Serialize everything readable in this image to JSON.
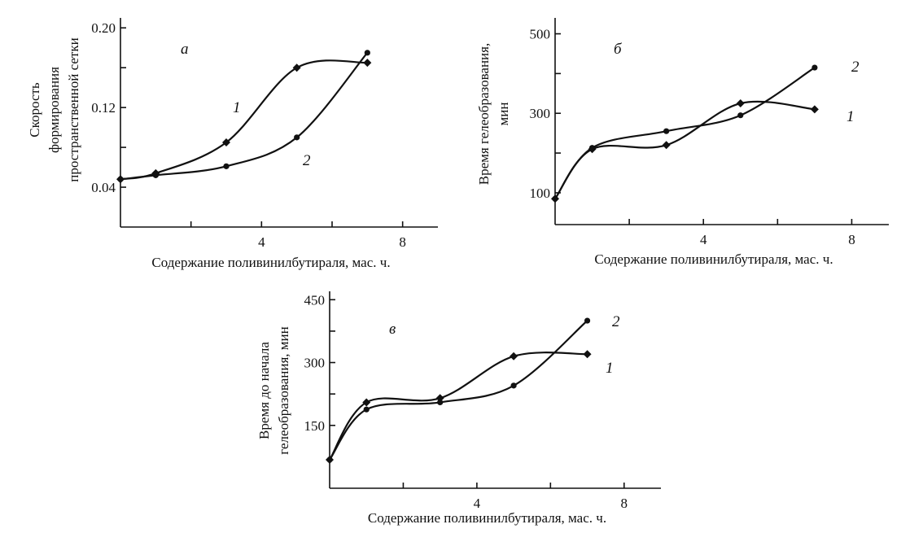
{
  "chart_data": [
    {
      "type": "line",
      "panel_label": "а",
      "xlabel": "Содержание поливинилбутираля, мас. ч.",
      "ylabel_lines": [
        "Скорость",
        "формирования",
        "пространственной сетки"
      ],
      "xlim": [
        0,
        9
      ],
      "ylim": [
        0,
        0.21
      ],
      "xticks": [
        0,
        2,
        4,
        6,
        8
      ],
      "xtick_labels": [
        "",
        "",
        "4",
        "",
        "8"
      ],
      "yticks": [
        0.04,
        0.08,
        0.12,
        0.16,
        0.2
      ],
      "ytick_labels": [
        "0.04",
        "",
        "0.12",
        "",
        "0.20"
      ],
      "series": [
        {
          "name": "1",
          "marker": "diamond",
          "x": [
            0,
            1,
            3,
            5,
            7
          ],
          "y": [
            0.048,
            0.054,
            0.085,
            0.16,
            0.165
          ]
        },
        {
          "name": "2",
          "marker": "circle",
          "x": [
            0,
            1,
            3,
            5,
            7
          ],
          "y": [
            0.048,
            0.052,
            0.061,
            0.09,
            0.175
          ]
        }
      ]
    },
    {
      "type": "line",
      "panel_label": "б",
      "xlabel": "Содержание поливинилбутираля, мас. ч.",
      "ylabel_lines": [
        "Время гелеобразования,",
        "мин"
      ],
      "xlim": [
        0,
        9
      ],
      "ylim": [
        20,
        540
      ],
      "xticks": [
        0,
        2,
        4,
        6,
        8
      ],
      "xtick_labels": [
        "",
        "",
        "4",
        "",
        "8"
      ],
      "yticks": [
        100,
        200,
        300,
        400,
        500
      ],
      "ytick_labels": [
        "100",
        "",
        "300",
        "",
        "500"
      ],
      "series": [
        {
          "name": "1",
          "marker": "diamond",
          "x": [
            0,
            1,
            3,
            5,
            7
          ],
          "y": [
            85,
            210,
            220,
            325,
            310
          ]
        },
        {
          "name": "2",
          "marker": "circle",
          "x": [
            0,
            1,
            3,
            5,
            7
          ],
          "y": [
            85,
            213,
            255,
            295,
            415
          ]
        }
      ]
    },
    {
      "type": "line",
      "panel_label": "в",
      "xlabel": "Содержание поливинилбутираля, мас. ч.",
      "ylabel_lines": [
        "Время до начала",
        "гелеобразования, мин"
      ],
      "xlim": [
        0,
        9
      ],
      "ylim": [
        0,
        470
      ],
      "xticks": [
        0,
        2,
        4,
        6,
        8
      ],
      "xtick_labels": [
        "",
        "",
        "4",
        "",
        "8"
      ],
      "yticks": [
        150,
        225,
        300,
        375,
        450
      ],
      "ytick_labels": [
        "150",
        "",
        "300",
        "",
        "450"
      ],
      "series": [
        {
          "name": "1",
          "marker": "diamond",
          "x": [
            0,
            1,
            3,
            5,
            7
          ],
          "y": [
            68,
            205,
            215,
            315,
            320
          ]
        },
        {
          "name": "2",
          "marker": "circle",
          "x": [
            0,
            1,
            3,
            5,
            7
          ],
          "y": [
            68,
            188,
            205,
            245,
            400
          ]
        }
      ]
    }
  ]
}
